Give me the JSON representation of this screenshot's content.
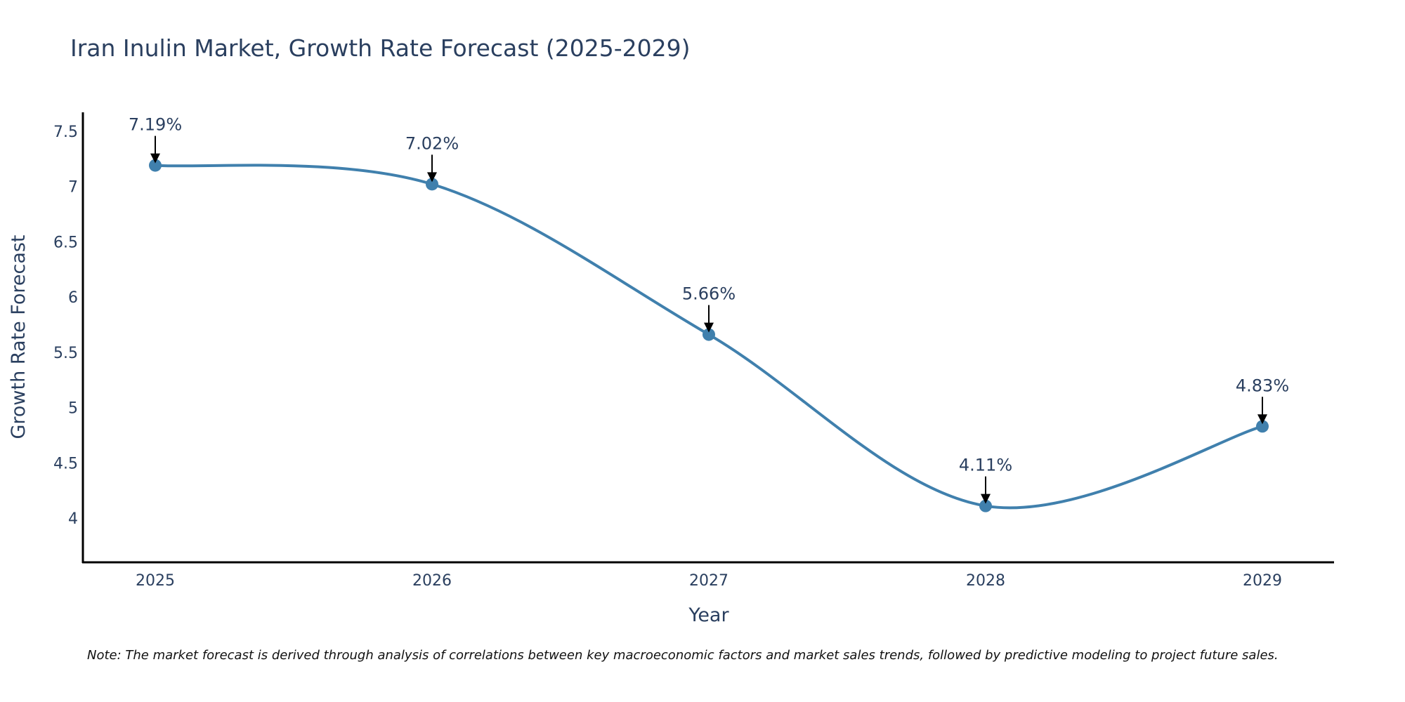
{
  "chart_data": {
    "type": "line",
    "title": "Iran Inulin Market, Growth Rate Forecast (2025-2029)",
    "xlabel": "Year",
    "ylabel": "Growth Rate Forecast",
    "categories": [
      "2025",
      "2026",
      "2027",
      "2028",
      "2029"
    ],
    "series": [
      {
        "name": "Growth Rate Forecast",
        "values": [
          7.19,
          7.02,
          5.66,
          4.11,
          4.83
        ],
        "labels": [
          "7.19%",
          "7.02%",
          "5.66%",
          "4.11%",
          "4.83%"
        ]
      }
    ],
    "ylim": [
      3.6,
      7.67
    ],
    "yticks": [
      4,
      4.5,
      5,
      5.5,
      6,
      6.5,
      7,
      7.5
    ],
    "ytick_labels": [
      "4",
      "4.5",
      "5",
      "5.5",
      "6",
      "6.5",
      "7",
      "7.5"
    ],
    "line_color": "#4080ad",
    "grid": false,
    "smooth": true
  },
  "note": "Note: The market forecast is derived through analysis of correlations between key macroeconomic factors and market sales trends, followed by predictive modeling to project future sales."
}
